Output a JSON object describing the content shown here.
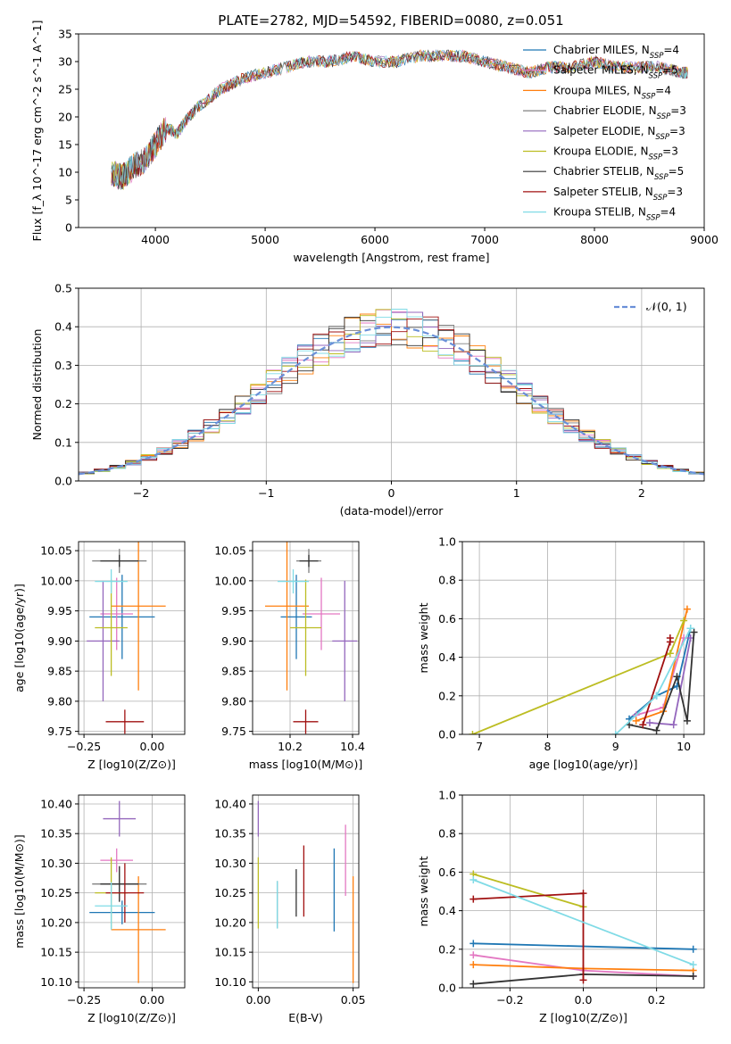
{
  "figure_title": "PLATE=2782, MJD=54592, FIBERID=0080, z=0.051",
  "chart_data": [
    {
      "id": "spectrum",
      "type": "line",
      "title": "PLATE=2782, MJD=54592, FIBERID=0080, z=0.051",
      "xlabel": "wavelength [Angstrom, rest frame]",
      "ylabel": "Flux [f_λ 10^-17 erg cm^-2 s^-1 A^-1]",
      "xlim": [
        3300,
        9000
      ],
      "ylim": [
        0,
        35
      ],
      "xticks": [
        4000,
        5000,
        6000,
        7000,
        8000,
        9000
      ],
      "yticks": [
        0,
        5,
        10,
        15,
        20,
        25,
        30,
        35
      ],
      "legend_position": "right",
      "x": [
        3600,
        3700,
        3800,
        3900,
        4000,
        4100,
        4200,
        4300,
        4400,
        4600,
        4800,
        5000,
        5200,
        5400,
        5600,
        5800,
        6000,
        6200,
        6400,
        6600,
        6800,
        7000,
        7200,
        7400,
        7600,
        7800,
        8000,
        8200,
        8400,
        8600,
        8800,
        8850
      ],
      "series": [
        {
          "name": "Chabrier MILES, N_SSP=4",
          "color": "#1f77b4",
          "values": [
            10,
            9,
            11,
            12,
            15,
            18,
            17,
            20,
            22,
            25,
            27,
            28,
            29,
            30,
            30,
            31,
            30,
            30,
            31,
            31,
            31,
            30,
            29,
            28,
            29,
            29,
            30,
            29,
            29,
            29,
            28,
            28
          ]
        },
        {
          "name": "Salpeter MILES, N_SSP=5",
          "color": "#e377c2",
          "values": [
            10,
            9,
            11,
            12,
            15,
            18,
            17,
            20,
            22,
            25,
            27,
            28,
            29,
            30,
            30,
            31,
            30,
            30,
            31,
            31,
            31,
            30,
            29,
            28,
            29,
            29,
            30,
            29,
            29,
            29,
            28,
            28
          ]
        },
        {
          "name": "Kroupa MILES, N_SSP=4",
          "color": "#ff7f0e",
          "values": [
            10,
            9,
            11,
            12,
            15,
            18,
            17,
            20,
            22,
            25,
            27,
            28,
            29,
            30,
            30,
            31,
            30,
            30,
            31,
            31,
            31,
            30,
            29,
            28,
            29,
            29,
            30,
            29,
            29,
            29,
            28,
            28
          ]
        },
        {
          "name": "Chabrier ELODIE, N_SSP=3",
          "color": "#808080",
          "values": [
            10,
            9,
            11,
            12,
            15,
            18,
            17,
            20,
            22,
            25,
            27,
            28,
            29,
            30,
            30,
            31,
            30,
            30,
            31,
            31,
            31,
            30,
            29,
            28,
            29,
            29,
            30,
            29,
            29,
            29,
            28,
            28
          ]
        },
        {
          "name": "Salpeter ELODIE, N_SSP=3",
          "color": "#9467bd",
          "values": [
            10,
            9,
            11,
            12,
            15,
            18,
            17,
            20,
            22,
            25,
            27,
            28,
            29,
            30,
            30,
            31,
            30,
            30,
            31,
            31,
            31,
            30,
            29,
            28,
            29,
            29,
            30,
            29,
            29,
            29,
            28,
            28
          ]
        },
        {
          "name": "Kroupa ELODIE, N_SSP=3",
          "color": "#bcbd22",
          "values": [
            10,
            9,
            11,
            12,
            15,
            18,
            17,
            20,
            22,
            25,
            27,
            28,
            29,
            30,
            30,
            31,
            30,
            30,
            31,
            31,
            31,
            30,
            29,
            28,
            29,
            29,
            30,
            29,
            29,
            29,
            28,
            28
          ]
        },
        {
          "name": "Chabrier STELIB, N_SSP=5",
          "color": "#333333",
          "values": [
            10,
            9,
            11,
            12,
            15,
            18,
            17,
            20,
            22,
            25,
            27,
            28,
            29,
            30,
            30,
            31,
            30,
            30,
            31,
            31,
            31,
            30,
            29,
            28,
            29,
            29,
            30,
            29,
            29,
            29,
            28,
            28
          ]
        },
        {
          "name": "Salpeter STELIB, N_SSP=3",
          "color": "#a01010",
          "values": [
            10,
            9,
            11,
            12,
            15,
            18,
            17,
            20,
            22,
            25,
            27,
            28,
            29,
            30,
            30,
            31,
            30,
            30,
            31,
            31,
            31,
            30,
            29,
            28,
            29,
            29,
            30,
            29,
            29,
            29,
            28,
            28
          ]
        },
        {
          "name": "Kroupa STELIB, N_SSP=4",
          "color": "#80dbe6",
          "values": [
            10,
            9,
            11,
            12,
            15,
            18,
            17,
            20,
            22,
            25,
            27,
            28,
            29,
            30,
            30,
            31,
            30,
            30,
            31,
            31,
            31,
            30,
            29,
            28,
            29,
            29,
            30,
            29,
            29,
            29,
            28,
            28
          ]
        }
      ]
    },
    {
      "id": "residuals",
      "type": "line",
      "xlabel": "(data-model)/error",
      "ylabel": "Normed distribution",
      "xlim": [
        -2.5,
        2.5
      ],
      "ylim": [
        0,
        0.5
      ],
      "xticks": [
        -2,
        -1,
        0,
        1,
        2
      ],
      "yticks": [
        0.0,
        0.1,
        0.2,
        0.3,
        0.4,
        0.5
      ],
      "grid": true,
      "legend_position": "top-right",
      "reference_curve": {
        "name": "N(0,1)",
        "color": "#6a8fd8",
        "style": "dashed"
      },
      "histogram_series_colors": [
        "#1f77b4",
        "#e377c2",
        "#ff7f0e",
        "#808080",
        "#9467bd",
        "#bcbd22",
        "#333333",
        "#a01010",
        "#80dbe6"
      ]
    },
    {
      "id": "age-vs-Z",
      "type": "scatter",
      "xlabel": "Z [log10(Z/Z⊙)]",
      "ylabel": "age  [log10(age/yr)]",
      "xlim": [
        -0.27,
        0.12
      ],
      "ylim": [
        9.745,
        10.065
      ],
      "xticks": [
        -0.25,
        0.0
      ],
      "yticks": [
        9.75,
        9.8,
        9.85,
        9.9,
        9.95,
        10.0,
        10.05
      ],
      "grid": true,
      "points": [
        {
          "color": "#1f77b4",
          "x": -0.11,
          "y": 9.94,
          "xerr": 0.12,
          "yerr": 0.07
        },
        {
          "color": "#e377c2",
          "x": -0.13,
          "y": 9.945,
          "xerr": 0.06,
          "yerr": 0.06
        },
        {
          "color": "#ff7f0e",
          "x": -0.05,
          "y": 9.958,
          "xerr": 0.1,
          "yerr": 0.14
        },
        {
          "color": "#808080",
          "x": -0.12,
          "y": 10.033,
          "xerr": 0.1,
          "yerr": 0.02
        },
        {
          "color": "#9467bd",
          "x": -0.18,
          "y": 9.9,
          "xerr": 0.06,
          "yerr": 0.1
        },
        {
          "color": "#bcbd22",
          "x": -0.15,
          "y": 9.922,
          "xerr": 0.06,
          "yerr": 0.08
        },
        {
          "color": "#333333",
          "x": -0.12,
          "y": 10.033,
          "xerr": 0.07,
          "yerr": 0.01
        },
        {
          "color": "#a01010",
          "x": -0.1,
          "y": 9.766,
          "xerr": 0.07,
          "yerr": 0.02
        },
        {
          "color": "#80dbe6",
          "x": -0.15,
          "y": 9.999,
          "xerr": 0.06,
          "yerr": 0.02
        }
      ]
    },
    {
      "id": "age-vs-mass",
      "type": "scatter",
      "xlabel": "mass [log10(M/M⊙)]",
      "ylabel": "",
      "xlim": [
        10.08,
        10.42
      ],
      "ylim": [
        9.745,
        10.065
      ],
      "xticks": [
        10.2,
        10.4
      ],
      "yticks": [
        9.75,
        9.8,
        9.85,
        9.9,
        9.95,
        10.0,
        10.05
      ],
      "grid": true,
      "points": [
        {
          "color": "#1f77b4",
          "x": 10.22,
          "y": 9.94,
          "xerr": 0.05,
          "yerr": 0.07
        },
        {
          "color": "#e377c2",
          "x": 10.3,
          "y": 9.945,
          "xerr": 0.06,
          "yerr": 0.06
        },
        {
          "color": "#ff7f0e",
          "x": 10.19,
          "y": 9.958,
          "xerr": 0.07,
          "yerr": 0.14
        },
        {
          "color": "#808080",
          "x": 10.26,
          "y": 10.033,
          "xerr": 0.04,
          "yerr": 0.02
        },
        {
          "color": "#9467bd",
          "x": 10.375,
          "y": 9.9,
          "xerr": 0.04,
          "yerr": 0.1
        },
        {
          "color": "#bcbd22",
          "x": 10.25,
          "y": 9.922,
          "xerr": 0.05,
          "yerr": 0.08
        },
        {
          "color": "#333333",
          "x": 10.26,
          "y": 10.033,
          "xerr": 0.03,
          "yerr": 0.01
        },
        {
          "color": "#a01010",
          "x": 10.25,
          "y": 9.766,
          "xerr": 0.04,
          "yerr": 0.02
        },
        {
          "color": "#80dbe6",
          "x": 10.21,
          "y": 9.999,
          "xerr": 0.05,
          "yerr": 0.02
        }
      ]
    },
    {
      "id": "weight-vs-age",
      "type": "line",
      "xlabel": "age  [log10(age/yr)]",
      "ylabel": "mass weight",
      "xlim": [
        6.75,
        10.3
      ],
      "ylim": [
        0.0,
        1.0
      ],
      "xticks": [
        7,
        8,
        9,
        10
      ],
      "yticks": [
        0.0,
        0.2,
        0.4,
        0.6,
        0.8,
        1.0
      ],
      "grid": true,
      "series": [
        {
          "color": "#1f77b4",
          "x": [
            9.2,
            9.6,
            9.9,
            10.1
          ],
          "y": [
            0.08,
            0.2,
            0.25,
            0.55
          ]
        },
        {
          "color": "#e377c2",
          "x": [
            9.3,
            9.7,
            10.0
          ],
          "y": [
            0.1,
            0.14,
            0.5
          ]
        },
        {
          "color": "#ff7f0e",
          "x": [
            9.3,
            9.7,
            10.05
          ],
          "y": [
            0.07,
            0.12,
            0.65
          ]
        },
        {
          "color": "#9467bd",
          "x": [
            9.5,
            9.85,
            10.1
          ],
          "y": [
            0.06,
            0.05,
            0.5
          ]
        },
        {
          "color": "#bcbd22",
          "x": [
            6.9,
            9.8,
            10.0
          ],
          "y": [
            0.0,
            0.42,
            0.59
          ]
        },
        {
          "color": "#333333",
          "x": [
            9.2,
            9.6,
            9.9,
            10.05,
            10.15
          ],
          "y": [
            0.05,
            0.02,
            0.3,
            0.07,
            0.53
          ]
        },
        {
          "color": "#a01010",
          "x": [
            9.4,
            9.8,
            9.8
          ],
          "y": [
            0.05,
            0.48,
            0.5
          ]
        },
        {
          "color": "#80dbe6",
          "x": [
            9.0,
            9.6,
            10.1
          ],
          "y": [
            0.0,
            0.2,
            0.55
          ]
        }
      ]
    },
    {
      "id": "mass-vs-Z",
      "type": "scatter",
      "xlabel": "Z [log10(Z/Z⊙)]",
      "ylabel": "mass [log10(M/M⊙)]",
      "xlim": [
        -0.27,
        0.12
      ],
      "ylim": [
        10.09,
        10.415
      ],
      "xticks": [
        -0.25,
        0.0
      ],
      "yticks": [
        10.1,
        10.15,
        10.2,
        10.25,
        10.3,
        10.35,
        10.4
      ],
      "grid": true,
      "points": [
        {
          "color": "#1f77b4",
          "x": -0.11,
          "y": 10.217,
          "xerr": 0.12,
          "yerr": 0.02
        },
        {
          "color": "#e377c2",
          "x": -0.13,
          "y": 10.305,
          "xerr": 0.06,
          "yerr": 0.02
        },
        {
          "color": "#ff7f0e",
          "x": -0.05,
          "y": 10.188,
          "xerr": 0.1,
          "yerr": 0.09
        },
        {
          "color": "#808080",
          "x": -0.12,
          "y": 10.265,
          "xerr": 0.1,
          "yerr": 0.03
        },
        {
          "color": "#9467bd",
          "x": -0.12,
          "y": 10.375,
          "xerr": 0.06,
          "yerr": 0.03
        },
        {
          "color": "#bcbd22",
          "x": -0.15,
          "y": 10.25,
          "xerr": 0.06,
          "yerr": 0.06
        },
        {
          "color": "#333333",
          "x": -0.12,
          "y": 10.265,
          "xerr": 0.07,
          "yerr": 0.03
        },
        {
          "color": "#a01010",
          "x": -0.1,
          "y": 10.25,
          "xerr": 0.07,
          "yerr": 0.05
        },
        {
          "color": "#80dbe6",
          "x": -0.15,
          "y": 10.228,
          "xerr": 0.06,
          "yerr": 0.04
        }
      ]
    },
    {
      "id": "mass-vs-EBV",
      "type": "scatter",
      "xlabel": "E(B-V)",
      "ylabel": "",
      "xlim": [
        -0.003,
        0.053
      ],
      "ylim": [
        10.09,
        10.415
      ],
      "xticks": [
        0.0,
        0.05
      ],
      "yticks": [
        10.1,
        10.15,
        10.2,
        10.25,
        10.3,
        10.35,
        10.4
      ],
      "grid": true,
      "points": [
        {
          "color": "#1f77b4",
          "x": 0.04,
          "y": 10.255,
          "xerr": 0.0,
          "yerr": 0.07
        },
        {
          "color": "#e377c2",
          "x": 0.046,
          "y": 10.305,
          "xerr": 0.0,
          "yerr": 0.06
        },
        {
          "color": "#ff7f0e",
          "x": 0.05,
          "y": 10.188,
          "xerr": 0.0,
          "yerr": 0.09
        },
        {
          "color": "#808080",
          "x": 0.01,
          "y": 10.23,
          "xerr": 0.0,
          "yerr": 0.04
        },
        {
          "color": "#9467bd",
          "x": 0.0,
          "y": 10.375,
          "xerr": 0.0,
          "yerr": 0.03
        },
        {
          "color": "#bcbd22",
          "x": 0.0,
          "y": 10.25,
          "xerr": 0.0,
          "yerr": 0.06
        },
        {
          "color": "#333333",
          "x": 0.02,
          "y": 10.25,
          "xerr": 0.0,
          "yerr": 0.04
        },
        {
          "color": "#a01010",
          "x": 0.024,
          "y": 10.27,
          "xerr": 0.0,
          "yerr": 0.06
        },
        {
          "color": "#80dbe6",
          "x": 0.01,
          "y": 10.23,
          "xerr": 0.0,
          "yerr": 0.04
        }
      ]
    },
    {
      "id": "weight-vs-Z",
      "type": "line",
      "xlabel": "Z [log10(Z/Z⊙)]",
      "ylabel": "mass weight",
      "xlim": [
        -0.33,
        0.33
      ],
      "ylim": [
        0.0,
        1.0
      ],
      "xticks": [
        -0.2,
        0.0,
        0.2
      ],
      "yticks": [
        0.0,
        0.2,
        0.4,
        0.6,
        0.8,
        1.0
      ],
      "grid": true,
      "series": [
        {
          "color": "#1f77b4",
          "x": [
            -0.3,
            0.3
          ],
          "y": [
            0.23,
            0.2
          ]
        },
        {
          "color": "#e377c2",
          "x": [
            -0.3,
            0.0,
            0.3
          ],
          "y": [
            0.17,
            0.09,
            0.06
          ]
        },
        {
          "color": "#ff7f0e",
          "x": [
            -0.3,
            0.0,
            0.3
          ],
          "y": [
            0.12,
            0.1,
            0.09
          ]
        },
        {
          "color": "#bcbd22",
          "x": [
            -0.3,
            0.0
          ],
          "y": [
            0.59,
            0.42
          ]
        },
        {
          "color": "#333333",
          "x": [
            -0.3,
            0.0,
            0.3
          ],
          "y": [
            0.02,
            0.07,
            0.06
          ]
        },
        {
          "color": "#a01010",
          "x": [
            -0.3,
            0.0,
            0.0
          ],
          "y": [
            0.46,
            0.49,
            0.04
          ]
        },
        {
          "color": "#80dbe6",
          "x": [
            -0.3,
            0.3
          ],
          "y": [
            0.56,
            0.12
          ]
        }
      ]
    }
  ]
}
